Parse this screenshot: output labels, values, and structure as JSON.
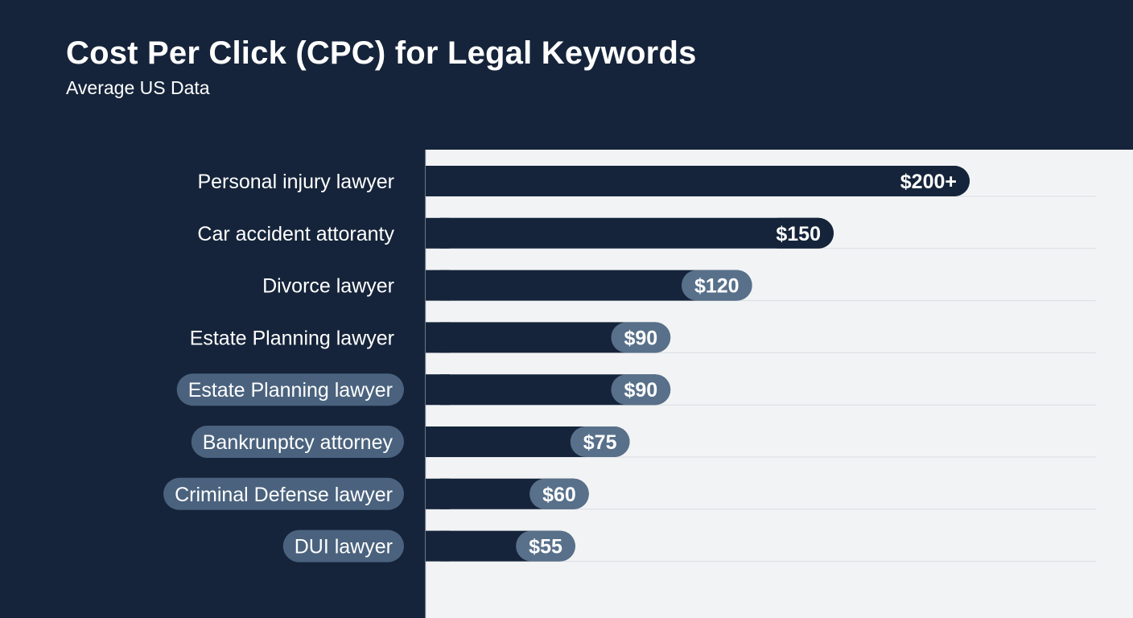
{
  "title": "Cost Per Click (CPC) for Legal Keywords",
  "subtitle": "Average US Data",
  "colors": {
    "background": "#15243a",
    "plot_background": "#f2f3f5",
    "bar": "#15243a",
    "bar_label_dark": "#15243a",
    "bar_label_muted": "#58708a",
    "category_pill": "#4a627d",
    "text": "#ffffff"
  },
  "chart_data": {
    "type": "bar",
    "orientation": "horizontal",
    "grid": true,
    "legend": "none",
    "xlim": [
      0,
      240
    ],
    "categories": [
      "Personal injury lawyer",
      "Car accident attoranty",
      "Divorce lawyer",
      "Estate Planning lawyer",
      "Estate Planning lawyer",
      "Bankrunptcy attorney",
      "Criminal Defense lawyer",
      "DUI lawyer"
    ],
    "values": [
      200,
      150,
      120,
      90,
      90,
      75,
      60,
      55
    ],
    "data_labels": [
      "$200+",
      "$150",
      "$120",
      "$90",
      "$90",
      "$75",
      "$60",
      "$55"
    ],
    "highlighted_categories": [
      false,
      false,
      false,
      false,
      true,
      true,
      true,
      true
    ],
    "muted_value_labels": [
      false,
      false,
      true,
      true,
      true,
      true,
      true,
      true
    ]
  }
}
